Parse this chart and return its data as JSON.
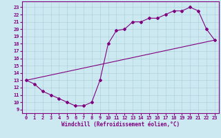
{
  "xlabel": "Windchill (Refroidissement éolien,°C)",
  "ylabel": "",
  "bg_color": "#cce8f0",
  "line_color": "#800080",
  "grid_color": "#aaccd8",
  "spine_color": "#800080",
  "xlim": [
    -0.5,
    23.5
  ],
  "ylim": [
    8.5,
    23.8
  ],
  "yticks": [
    9,
    10,
    11,
    12,
    13,
    14,
    15,
    16,
    17,
    18,
    19,
    20,
    21,
    22,
    23
  ],
  "xticks": [
    0,
    1,
    2,
    3,
    4,
    5,
    6,
    7,
    8,
    9,
    10,
    11,
    12,
    13,
    14,
    15,
    16,
    17,
    18,
    19,
    20,
    21,
    22,
    23
  ],
  "curve1_x": [
    0,
    1,
    2,
    3,
    4,
    5,
    6,
    7,
    8,
    9,
    10,
    11,
    12,
    13,
    14,
    15,
    16,
    17,
    18,
    19,
    20,
    21,
    22,
    23
  ],
  "curve1_y": [
    13.0,
    12.5,
    11.5,
    11.0,
    10.5,
    10.0,
    9.5,
    9.5,
    10.0,
    13.0,
    18.0,
    19.8,
    20.0,
    21.0,
    21.0,
    21.5,
    21.5,
    22.0,
    22.5,
    22.5,
    23.0,
    22.5,
    20.0,
    18.5
  ],
  "curve2_x": [
    0,
    23
  ],
  "curve2_y": [
    13.0,
    18.5
  ],
  "marker": "D",
  "markersize": 2,
  "linewidth": 0.8,
  "tick_fontsize": 5,
  "xlabel_fontsize": 5.5
}
